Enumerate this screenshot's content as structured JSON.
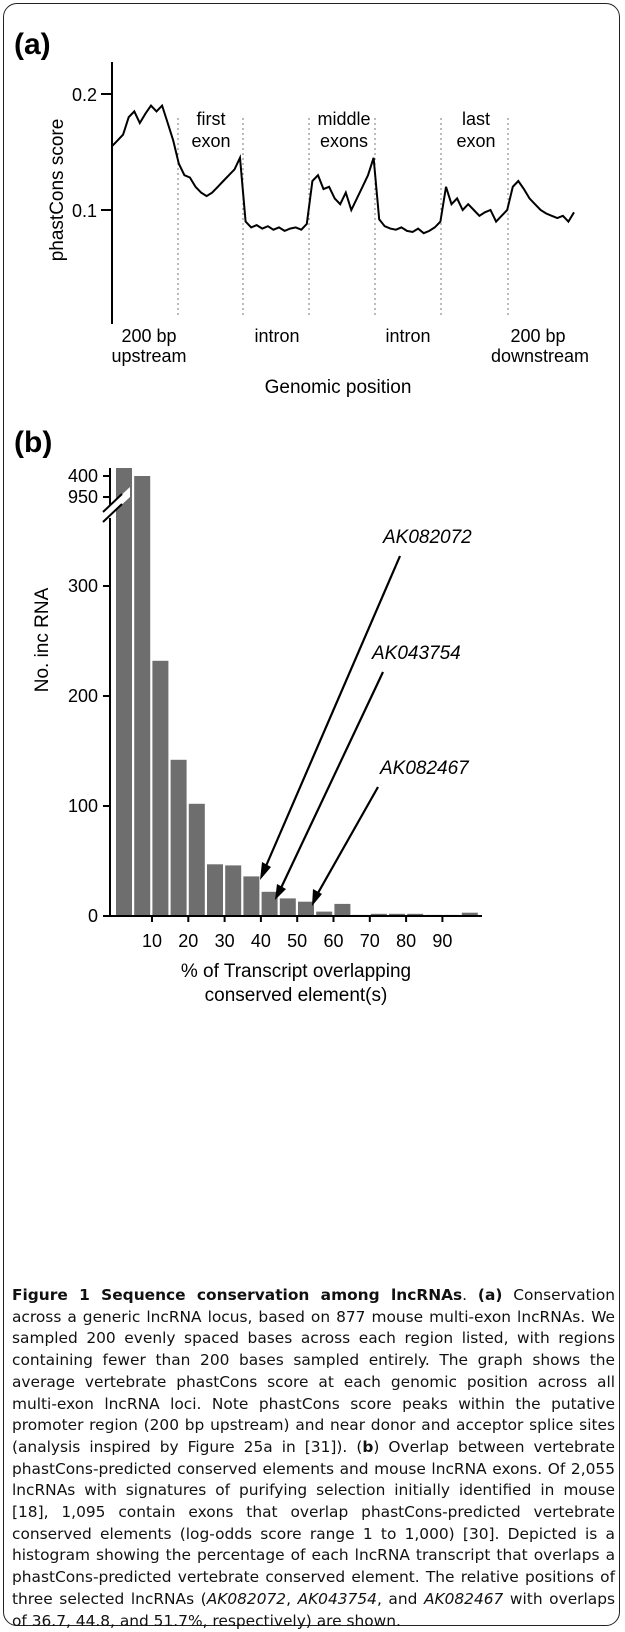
{
  "panel_a": {
    "label": "(a)",
    "ylabel": "phastCons score",
    "yticks": [
      "0.2",
      "0.1"
    ],
    "xlabel": "Genomic position",
    "region_labels_top": [
      {
        "lines": [
          "first",
          "exon"
        ]
      },
      {
        "lines": [
          "middle",
          "exons"
        ]
      },
      {
        "lines": [
          "last",
          "exon"
        ]
      }
    ],
    "region_labels_bottom": [
      {
        "lines": [
          "200 bp",
          "upstream"
        ]
      },
      {
        "lines": [
          "intron"
        ]
      },
      {
        "lines": [
          "intron"
        ]
      },
      {
        "lines": [
          "200 bp",
          "downstream"
        ]
      }
    ]
  },
  "panel_b": {
    "label": "(b)",
    "ylabel": "No. inc RNA",
    "yticks": [
      "950",
      "400",
      "300",
      "200",
      "100",
      "0"
    ],
    "xticks": [
      "10",
      "20",
      "30",
      "40",
      "50",
      "60",
      "70",
      "80",
      "90"
    ],
    "xlabel_lines": [
      "% of Transcript overlapping",
      "conserved element(s)"
    ],
    "annotations": [
      "AK082072",
      "AK043754",
      "AK082467"
    ]
  },
  "chart_data": [
    {
      "type": "line",
      "title": "",
      "xlabel": "Genomic position",
      "ylabel": "phastCons score",
      "ylim": [
        0.0,
        0.22
      ],
      "grid": false,
      "regions": [
        "200 bp upstream",
        "first exon",
        "intron",
        "middle exons",
        "intron",
        "last exon",
        "200 bp downstream"
      ],
      "series": [
        {
          "values": [
            0.155,
            0.16,
            0.165,
            0.18,
            0.185,
            0.175,
            0.183,
            0.19,
            0.185,
            0.19,
            0.175,
            0.16,
            0.14,
            0.13,
            0.128,
            0.12,
            0.115,
            0.112,
            0.115,
            0.12,
            0.125,
            0.13,
            0.135,
            0.145,
            0.09,
            0.085,
            0.087,
            0.084,
            0.086,
            0.083,
            0.085,
            0.082,
            0.084,
            0.085,
            0.083,
            0.088,
            0.125,
            0.13,
            0.118,
            0.12,
            0.11,
            0.105,
            0.115,
            0.1,
            0.11,
            0.12,
            0.13,
            0.145,
            0.092,
            0.086,
            0.084,
            0.083,
            0.085,
            0.082,
            0.081,
            0.084,
            0.08,
            0.082,
            0.085,
            0.09,
            0.12,
            0.105,
            0.11,
            0.1,
            0.105,
            0.1,
            0.095,
            0.098,
            0.1,
            0.09,
            0.095,
            0.1,
            0.12,
            0.125,
            0.118,
            0.11,
            0.105,
            0.1,
            0.097,
            0.095,
            0.093,
            0.095,
            0.09,
            0.098
          ]
        }
      ]
    },
    {
      "type": "bar",
      "title": "",
      "xlabel": "% of Transcript overlapping conserved element(s)",
      "ylabel": "No. inc RNA",
      "axis_break": [
        420,
        950
      ],
      "categories": [
        "0-5",
        "5-10",
        "10-15",
        "15-20",
        "20-25",
        "25-30",
        "30-35",
        "35-40",
        "40-45",
        "45-50",
        "50-55",
        "55-60",
        "60-65",
        "65-70",
        "70-75",
        "75-80",
        "80-85",
        "85-90",
        "90-95",
        "95-100"
      ],
      "values": [
        950,
        400,
        232,
        142,
        102,
        47,
        46,
        36,
        22,
        16,
        13,
        4,
        11,
        1,
        2,
        2,
        2,
        1,
        1,
        3
      ],
      "annotations": [
        {
          "label": "AK082072",
          "overlap_percent": 36.7
        },
        {
          "label": "AK043754",
          "overlap_percent": 44.8
        },
        {
          "label": "AK082467",
          "overlap_percent": 51.7
        }
      ]
    }
  ],
  "caption": {
    "title": "Figure 1 Sequence conservation among lncRNAs",
    "segments": [
      ". ",
      "(a)",
      " Conservation across a generic lncRNA locus, based on 877 mouse multi-exon lncRNAs. We sampled 200 evenly spaced bases across each region listed, with regions containing fewer than 200 bases sampled entirely. The graph shows the average vertebrate phastCons score at each genomic position across all multi-exon lncRNA loci. Note phastCons score peaks within the putative promoter region (200 bp upstream) and near donor and acceptor splice sites (analysis inspired by Figure 25a in [31]). (",
      "b",
      ") Overlap between vertebrate phastCons-predicted conserved elements and mouse lncRNA exons. Of 2,055 lncRNAs with signatures of purifying selection initially identified in mouse [18], 1,095 contain exons that overlap phastCons-predicted vertebrate conserved elements (log-odds score range 1 to 1,000) [30]. Depicted is a histogram showing the percentage of each lncRNA transcript that overlaps a phastCons-predicted vertebrate conserved element. The relative positions of three selected lncRNAs (",
      "AK082072",
      ", ",
      "AK043754",
      ", and ",
      "AK082467",
      " with overlaps of 36.7, 44.8, and 51.7%, respectively) are shown."
    ]
  }
}
